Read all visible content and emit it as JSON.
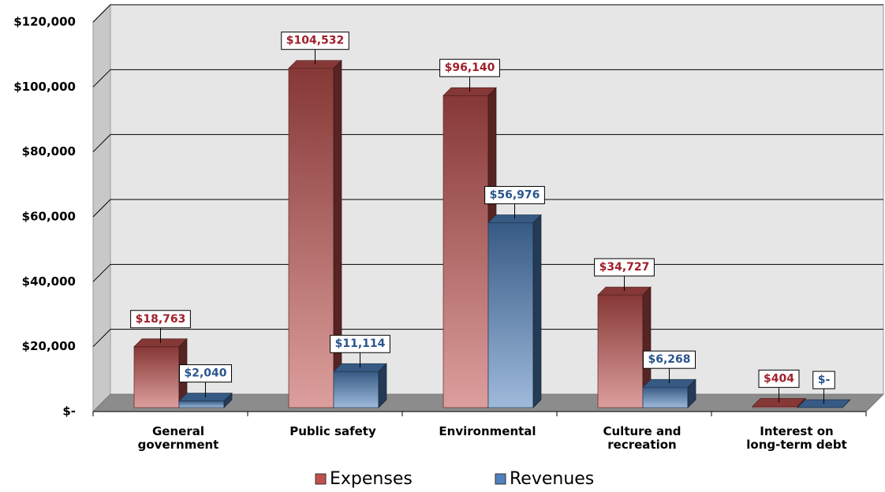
{
  "chart_data": {
    "type": "bar3d",
    "categories": [
      "General government",
      "Public safety",
      "Environmental",
      "Culture and recreation",
      "Interest on long-term debt"
    ],
    "series": [
      {
        "name": "Expenses",
        "color": "#c0504d",
        "label_color": "#a0202a",
        "values": [
          18763,
          104532,
          96140,
          34727,
          404
        ],
        "value_labels": [
          "$18,763",
          "$104,532",
          "$96,140",
          "$34,727",
          "$404"
        ]
      },
      {
        "name": "Revenues",
        "color": "#4f81bd",
        "label_color": "#2a5590",
        "values": [
          2040,
          11114,
          56976,
          6268,
          0
        ],
        "value_labels": [
          "$2,040",
          "$11,114",
          "$56,976",
          "$6,268",
          "$-"
        ]
      }
    ],
    "ylim": [
      0,
      120000
    ],
    "yticks": [
      {
        "value": 0,
        "label": "$-"
      },
      {
        "value": 20000,
        "label": "$20,000"
      },
      {
        "value": 40000,
        "label": "$40,000"
      },
      {
        "value": 60000,
        "label": "$60,000"
      },
      {
        "value": 80000,
        "label": "$80,000"
      },
      {
        "value": 100000,
        "label": "$100,000"
      },
      {
        "value": 120000,
        "label": "$120,000"
      }
    ],
    "grid": true,
    "legend": "bottom"
  }
}
